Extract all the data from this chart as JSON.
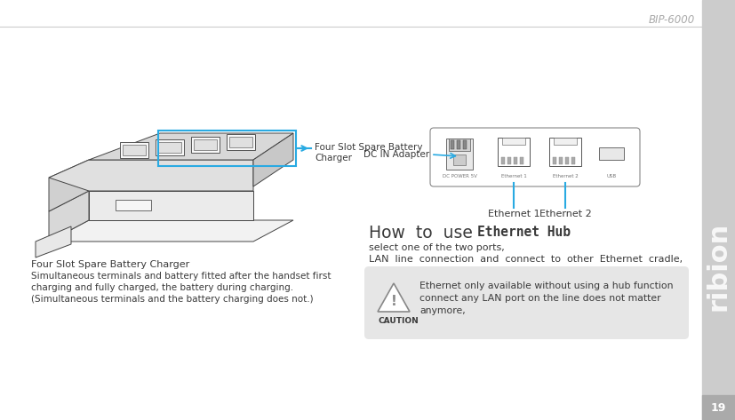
{
  "bg_color": "#ffffff",
  "sidebar_color": "#cccccc",
  "header_line_color": "#cccccc",
  "header_text": "BIP-6000",
  "page_number": "19",
  "title_left": "Four Slot Spare Battery Charger",
  "desc_line1": "Simultaneous terminals and battery fitted after the handset first",
  "desc_line2": "charging and fully charged, the battery during charging.",
  "desc_line3": "(Simultaneous terminals and the battery charging does not.)",
  "callout_text1": "Four Slot Spare Battery",
  "callout_text2": "Charger",
  "dc_label": "DC IN Adapter",
  "eth1_label": "Ethernet 1",
  "eth2_label": "Ethernet 2",
  "how_pre": "How  to  use  ",
  "how_bold": "Ethernet Hub",
  "how_line2": "select one of the two ports,",
  "how_line3": "LAN  line  connection  and  connect  to  other  Ethernet  cradle,",
  "caution_line1": "Ethernet only available without using a hub function",
  "caution_line2": "connect any LAN port on the line does not matter",
  "caution_line3": "anymore,",
  "caution_label": "CAUTION",
  "caution_bg": "#e6e6e6",
  "arrow_color": "#29aae2",
  "text_color": "#3a3a3a",
  "light_text": "#888888"
}
